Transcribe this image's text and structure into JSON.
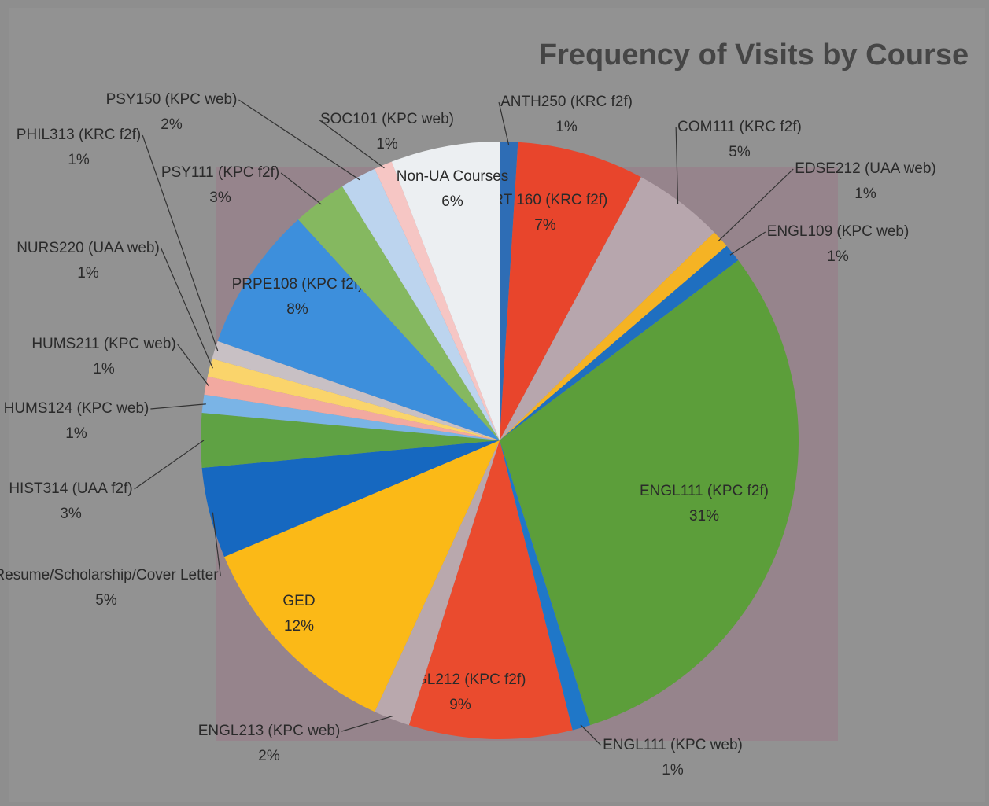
{
  "chart_data": {
    "type": "pie",
    "title": "Frequency of Visits by Course",
    "categories": [
      "ANTH250 (KRC f2f)",
      "ART 160 (KRC f2f)",
      "COM111 (KRC f2f)",
      "EDSE212 (UAA web)",
      "ENGL109 (KPC web)",
      "ENGL111 (KPC f2f)",
      "ENGL111 (KPC web)",
      "ENGL212 (KPC f2f)",
      "ENGL213 (KPC web)",
      "GED",
      "Resume/Scholarship/Cover Letter",
      "HIST314 (UAA f2f)",
      "HUMS124 (KPC web)",
      "HUMS211 (KPC web)",
      "NURS220 (UAA web)",
      "PHIL313 (KRC f2f)",
      "PRPE108 (KPC f2f)",
      "PSY111 (KPC f2f)",
      "PSY150 (KPC web)",
      "SOC101 (KPC web)",
      "Non-UA Courses"
    ],
    "values": [
      1,
      7,
      5,
      1,
      1,
      31,
      1,
      9,
      2,
      12,
      5,
      3,
      1,
      1,
      1,
      1,
      8,
      3,
      2,
      1,
      6
    ],
    "value_labels": [
      "1%",
      "7%",
      "5%",
      "1%",
      "1%",
      "31%",
      "1%",
      "9%",
      "2%",
      "12%",
      "5%",
      "3%",
      "1%",
      "1%",
      "1%",
      "1%",
      "8%",
      "3%",
      "2%",
      "1%",
      "6%"
    ],
    "colors": [
      "#2e6db5",
      "#e8452c",
      "#b7a6ad",
      "#f5b324",
      "#1f6fc0",
      "#5c9e3a",
      "#1f77c8",
      "#ea4b2e",
      "#b9a8ad",
      "#fbb917",
      "#1668c0",
      "#5fa244",
      "#7ab4e6",
      "#f2a9a0",
      "#fad46b",
      "#c8c0c4",
      "#3d8fdc",
      "#85b860",
      "#bcd4ee",
      "#f6c6c4",
      "#eceff2"
    ]
  }
}
